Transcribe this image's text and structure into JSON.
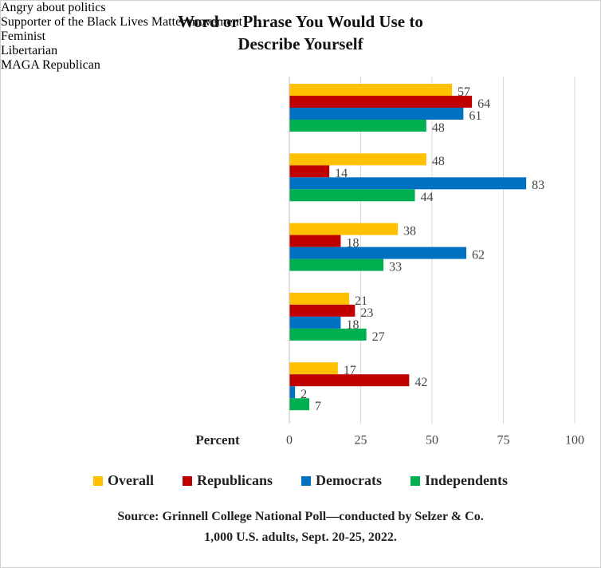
{
  "chart_data": {
    "type": "bar",
    "orientation": "horizontal",
    "title": "Word or Phrase You Would Use to Describe Yourself",
    "x_label": "Percent",
    "categories": [
      "Angry about politics",
      "Supporter of the Black Lives Matter movement",
      "Feminist",
      "Libertarian",
      "MAGA Republican"
    ],
    "series": [
      {
        "name": "Overall",
        "color": "#ffc000",
        "values": [
          57,
          48,
          38,
          21,
          17
        ]
      },
      {
        "name": "Republicans",
        "color": "#c00000",
        "values": [
          64,
          14,
          18,
          23,
          42
        ]
      },
      {
        "name": "Democrats",
        "color": "#0070c0",
        "values": [
          61,
          83,
          62,
          18,
          2
        ]
      },
      {
        "name": "Independents",
        "color": "#00b050",
        "values": [
          48,
          44,
          33,
          27,
          7
        ]
      }
    ],
    "xlim": [
      0,
      100
    ],
    "xticks": [
      0,
      25,
      50,
      75,
      100
    ],
    "grid": true,
    "source": [
      "Source: Grinnell College National Poll—conducted by Selzer & Co.",
      "1,000 U.S. adults, Sept. 20-25, 2022."
    ]
  }
}
